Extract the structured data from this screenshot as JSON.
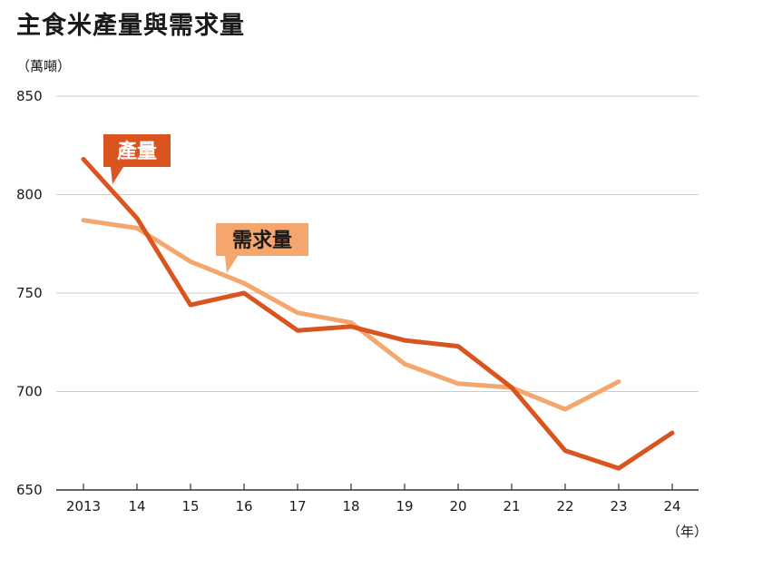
{
  "chart_data": {
    "type": "line",
    "title": "主食米產量與需求量",
    "ylabel": "（萬噸）",
    "xlabel": "（年）",
    "categories": [
      "2013",
      "14",
      "15",
      "16",
      "17",
      "18",
      "19",
      "20",
      "21",
      "22",
      "23",
      "24"
    ],
    "ylim": [
      650,
      850
    ],
    "yticks": [
      "850",
      "800",
      "750",
      "700",
      "650"
    ],
    "grid": true,
    "series": [
      {
        "name": "產量",
        "color": "#d9541e",
        "values": [
          818,
          788,
          744,
          750,
          731,
          733,
          726,
          723,
          702,
          670,
          661,
          679
        ]
      },
      {
        "name": "需求量",
        "color": "#f4a66c",
        "values": [
          787,
          783,
          766,
          755,
          740,
          735,
          714,
          704,
          702,
          691,
          705,
          null
        ]
      }
    ],
    "colors": {
      "grid": "#cccccc",
      "axis": "#333333"
    }
  }
}
